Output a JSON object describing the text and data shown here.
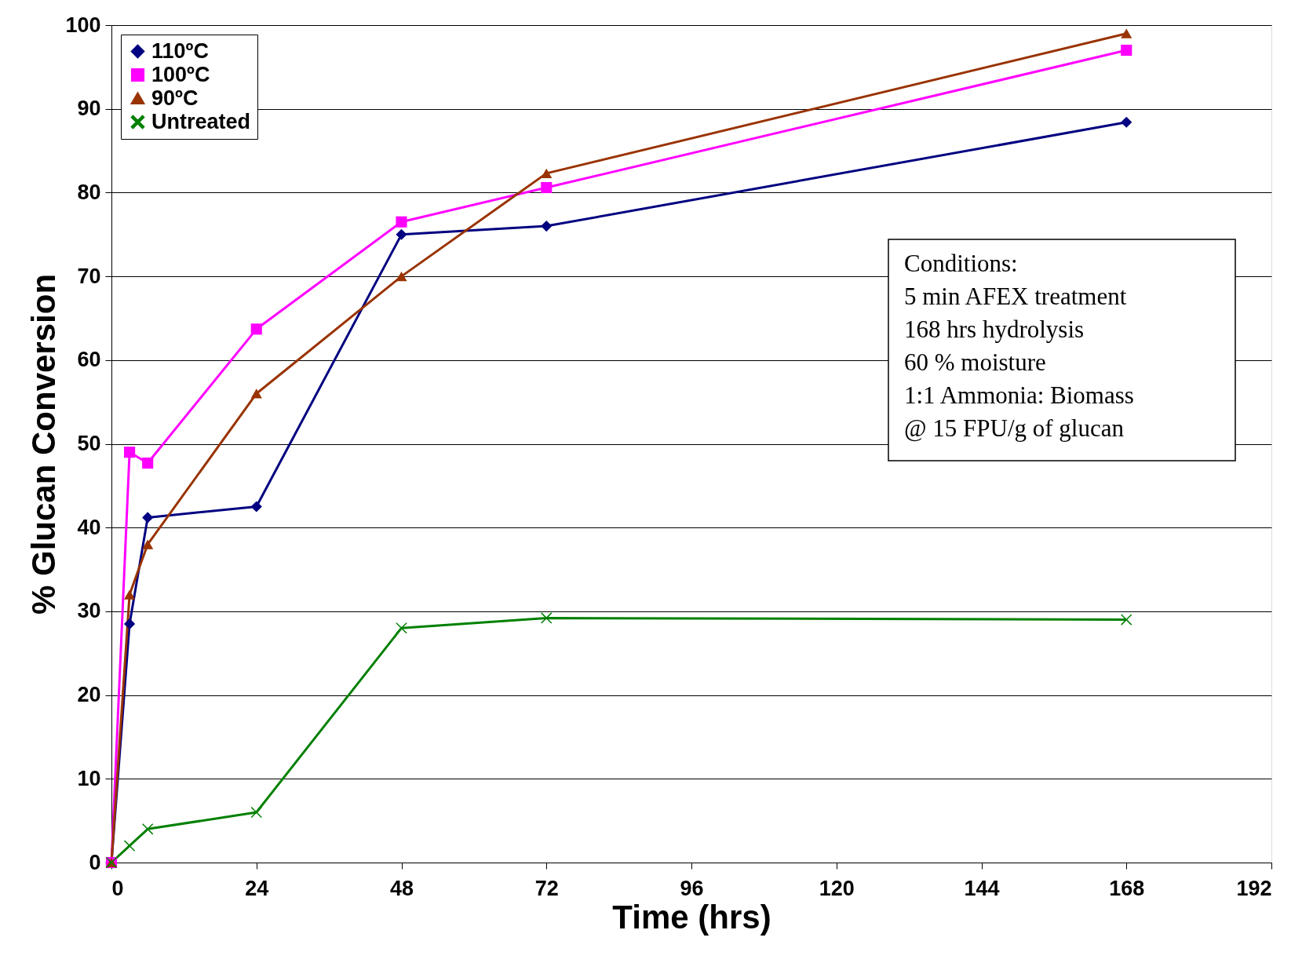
{
  "chart_data": {
    "type": "line",
    "x": [
      0,
      3,
      6,
      24,
      48,
      72,
      168
    ],
    "series": [
      {
        "name": "110ºC",
        "color": "#000080",
        "marker": "diamond",
        "values": [
          0,
          28.5,
          41.2,
          42.5,
          75,
          76,
          88.4
        ]
      },
      {
        "name": "100ºC",
        "color": "#ff00ff",
        "marker": "square",
        "values": [
          0,
          49,
          47.7,
          63.7,
          76.5,
          80.6,
          97
        ]
      },
      {
        "name": "90ºC",
        "color": "#993300",
        "marker": "triangle",
        "values": [
          0,
          32,
          38,
          56,
          70,
          82.3,
          99
        ]
      },
      {
        "name": "Untreated",
        "color": "#008000",
        "marker": "cross",
        "values": [
          0,
          2,
          4,
          6,
          28,
          29.2,
          29
        ]
      }
    ],
    "xlabel": "Time (hrs)",
    "ylabel": "% Glucan Conversion",
    "xlim": [
      0,
      192
    ],
    "xticks": [
      0,
      24,
      48,
      72,
      96,
      120,
      144,
      168,
      192
    ],
    "ylim": [
      0,
      100
    ],
    "yticks": [
      0,
      10,
      20,
      30,
      40,
      50,
      60,
      70,
      80,
      90,
      100
    ],
    "grid": "y",
    "legend": "top left",
    "line_style": "solid",
    "annotations": [
      "Conditions:",
      "5 min AFEX treatment",
      "168 hrs hydrolysis",
      "60 % moisture",
      "1:1 Ammonia: Biomass",
      "@ 15 FPU/g of glucan"
    ]
  }
}
